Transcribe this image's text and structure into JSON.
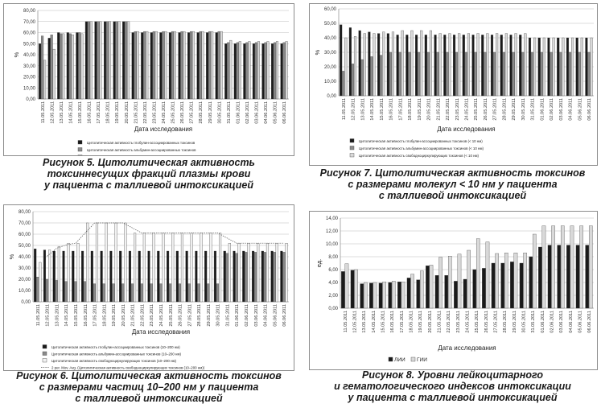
{
  "figures": [
    {
      "id": "fig5",
      "caption": [
        "Рисунок 5. Цитолитическая активность",
        "токсиннесущих фракций плазмы крови",
        "у пациента с таллиевой интоксикацией"
      ],
      "chart_data": {
        "type": "bar",
        "categories": [
          "11.05.2011",
          "12.05.2011",
          "13.05.2011",
          "14.05.2011",
          "15.05.2011",
          "16.05.2011",
          "17.05.2011",
          "18.05.2011",
          "19.05.2011",
          "20.05.2011",
          "21.05.2011",
          "22.05.2011",
          "23.05.2011",
          "24.05.2011",
          "25.05.2011",
          "26.05.2011",
          "27.05.2011",
          "28.05.2011",
          "29.05.2011",
          "30.05.2011",
          "31.05.2011",
          "01.06.2011",
          "02.06.2011",
          "03.06.2011",
          "04.06.2011",
          "05.06.2011",
          "06.06.2011"
        ],
        "series": [
          {
            "name": "Цитолитическая активность глобулин-ассоциированных токсинов",
            "color": "#1a1a1a",
            "values": [
              50,
              55,
              60,
              60,
              60,
              70,
              70,
              70,
              70,
              70,
              60,
              60,
              60,
              60,
              60,
              60,
              60,
              60,
              60,
              60,
              50,
              50,
              50,
              50,
              50,
              50,
              50
            ]
          },
          {
            "name": "Цитолитическая активность альбумин-ассоциированных токсинов",
            "color": "#8a8a8a",
            "values": [
              57,
              58,
              59,
              59,
              60,
              70,
              70,
              70,
              70,
              70,
              61,
              61,
              61,
              61,
              61,
              61,
              61,
              61,
              61,
              61,
              51,
              51,
              51,
              51,
              51,
              51,
              51
            ]
          },
          {
            "name": "Цитолитическая активность свободноциркулирующих токсинов",
            "color": "#d9d9d9",
            "values": [
              35,
              45,
              59,
              58,
              59,
              70,
              70,
              70,
              70,
              70,
              61,
              61,
              61,
              61,
              61,
              61,
              61,
              61,
              61,
              61,
              53,
              52,
              52,
              52,
              52,
              52,
              52
            ]
          }
        ],
        "ylim": [
          0,
          80
        ],
        "ytick_labels": [
          "0,00",
          "10,00",
          "20,00",
          "30,00",
          "40,00",
          "50,00",
          "60,00",
          "70,00",
          "80,00"
        ],
        "ylabel": "%",
        "xlabel": "Дата исследования",
        "grid": true,
        "legend": "bottom"
      }
    },
    {
      "id": "fig7",
      "caption": [
        "Рисунок 7. Цитолитическая активность токсинов",
        "с размерами молекул < 10 нм у пациента",
        "с таллиевой интоксикацией"
      ],
      "chart_data": {
        "type": "bar",
        "categories": [
          "11.05.2011",
          "12.05.2011",
          "13.05.2011",
          "14.05.2011",
          "15.05.2011",
          "16.05.2011",
          "17.05.2011",
          "18.05.2011",
          "19.05.2011",
          "20.05.2011",
          "21.05.2011",
          "22.05.2011",
          "23.05.2011",
          "24.05.2011",
          "25.05.2011",
          "26.05.2011",
          "27.05.2011",
          "28.05.2011",
          "29.05.2011",
          "30.05.2011",
          "31.05.2011",
          "01.06.2011",
          "02.06.2011",
          "03.06.2011",
          "04.06.2011",
          "05.06.2011",
          "06.06.2011"
        ],
        "series": [
          {
            "name": "Цитолитическая активность глобулин-ассоциированных токсинов (< 10 нм)",
            "color": "#1a1a1a",
            "values": [
              49,
              47,
              45,
              44,
              43,
              43,
              42,
              42,
              42,
              42,
              42,
              42,
              42,
              42,
              42,
              42,
              42,
              42,
              42,
              42,
              40,
              40,
              40,
              40,
              40,
              40,
              40
            ]
          },
          {
            "name": "Цитолитическая активность альбумин-ассоциированных токсинов (< 10 нм)",
            "color": "#8a8a8a",
            "values": [
              17,
              22,
              25,
              27,
              28,
              30,
              30,
              30,
              30,
              30,
              30,
              30,
              30,
              30,
              30,
              30,
              30,
              30,
              30,
              30,
              30,
              30,
              30,
              30,
              30,
              30,
              30
            ]
          },
          {
            "name": "Цитолитическая активность свободноциркулирующих токсинов (< 10 нм)",
            "color": "#d9d9d9",
            "values": [
              40,
              41,
              43,
              43,
              44,
              44,
              45,
              45,
              45,
              45,
              43,
              43,
              43,
              43,
              43,
              43,
              43,
              43,
              43,
              43,
              40,
              40,
              40,
              40,
              40,
              40,
              40
            ]
          }
        ],
        "ylim": [
          0,
          60
        ],
        "ytick_labels": [
          "0,00",
          "10,00",
          "20,00",
          "30,00",
          "40,00",
          "50,00",
          "60,00"
        ],
        "ylabel": "%",
        "xlabel": "Дата исследования",
        "grid": true,
        "legend": "bottom"
      }
    },
    {
      "id": "fig6",
      "caption": [
        "Рисунок 6. Цитолитическая активность токсинов",
        "с размерами частиц 10–200 нм у пациента",
        "с таллиевой интоксикацией"
      ],
      "chart_data": {
        "type": "bar",
        "categories": [
          "11.05.2011",
          "12.05.2011",
          "13.05.2011",
          "14.05.2011",
          "15.05.2011",
          "16.05.2011",
          "17.05.2011",
          "18.05.2011",
          "19.05.2011",
          "20.05.2011",
          "21.05.2011",
          "22.05.2011",
          "23.05.2011",
          "24.05.2011",
          "25.05.2011",
          "26.05.2011",
          "27.05.2011",
          "28.05.2011",
          "29.05.2011",
          "30.05.2011",
          "31.05.2011",
          "01.06.2011",
          "02.06.2011",
          "03.06.2011",
          "04.06.2011",
          "05.06.2011",
          "06.06.2011"
        ],
        "series": [
          {
            "name": "Цитолитическая активность глобулин-ассоциированных токсинов (10–200 нм)",
            "color": "#1a1a1a",
            "values": [
              47,
              46,
              45,
              45,
              45,
              45,
              45,
              45,
              45,
              45,
              45,
              45,
              45,
              45,
              45,
              45,
              45,
              45,
              45,
              45,
              45,
              45,
              45,
              45,
              45,
              45,
              45
            ]
          },
          {
            "name": "Цитолитическая активность альбумин-ассоциированных токсинов (10–200 нм)",
            "color": "#8a8a8a",
            "values": [
              22,
              20,
              19,
              18,
              18,
              18,
              16,
              16,
              16,
              16,
              16,
              16,
              16,
              16,
              16,
              16,
              16,
              16,
              16,
              16,
              43,
              43,
              44,
              44,
              44,
              44,
              44
            ]
          },
          {
            "name": "Цитолитическая активность свободноциркулирующих токсинов (10–200 нм)",
            "color": "#f2f2f2",
            "values": [
              35,
              46,
              49,
              52,
              52,
              70,
              70,
              70,
              70,
              70,
              61,
              61,
              61,
              61,
              61,
              61,
              61,
              61,
              61,
              61,
              52,
              52,
              52,
              52,
              52,
              52,
              52
            ]
          }
        ],
        "trendline": {
          "name": "2 per. Mov. Avg. (Цитолитическая активность свободноциркулирующих токсинов (10–200 нм))",
          "color": "#555555"
        },
        "ylim": [
          0,
          80
        ],
        "ytick_labels": [
          "0,00",
          "10,00",
          "20,00",
          "30,00",
          "40,00",
          "50,00",
          "60,00",
          "70,00",
          "80,00"
        ],
        "ylabel": "%",
        "xlabel": "Дата исследования",
        "grid": true,
        "legend": "bottom"
      }
    },
    {
      "id": "fig8",
      "caption": [
        "Рисунок 8. Уровни лейкоцитарного",
        "и гематологического индексов интоксикации",
        "у пациента с таллиевой интоксикацией"
      ],
      "chart_data": {
        "type": "bar",
        "categories": [
          "11.05.2011",
          "12.05.2011",
          "13.05.2011",
          "14.05.2011",
          "15.05.2011",
          "16.05.2011",
          "17.05.2011",
          "18.05.2011",
          "19.05.2011",
          "20.05.2011",
          "21.05.2011",
          "22.05.2011",
          "23.05.2011",
          "24.05.2011",
          "25.05.2011",
          "26.05.2011",
          "27.05.2011",
          "28.05.2011",
          "29.05.2011",
          "30.05.2011",
          "31.05.2011",
          "01.06.2011",
          "02.06.2011",
          "03.06.2011",
          "04.06.2011",
          "05.06.2011",
          "06.06.2011"
        ],
        "series": [
          {
            "name": "ЛИИ",
            "color": "#1a1a1a",
            "values": [
              5.7,
              5.9,
              3.8,
              3.9,
              3.9,
              4.0,
              4.1,
              4.7,
              4.4,
              6.6,
              5.1,
              5.1,
              4.2,
              4.5,
              6.0,
              6.2,
              7.0,
              7.0,
              7.2,
              7.0,
              8.0,
              9.5,
              9.8,
              9.8,
              9.8,
              9.8,
              9.8
            ]
          },
          {
            "name": "ГИИ",
            "color": "#d9d9d9",
            "values": [
              6.9,
              6.0,
              4.0,
              4.0,
              4.1,
              4.2,
              4.1,
              5.3,
              5.8,
              6.7,
              7.9,
              8.1,
              8.4,
              9.0,
              10.8,
              10.3,
              8.5,
              8.6,
              8.6,
              8.6,
              11.5,
              12.8,
              12.8,
              12.8,
              12.8,
              12.8,
              12.8
            ]
          }
        ],
        "ylim": [
          0,
          14
        ],
        "ytick_labels": [
          "0,00",
          "2,00",
          "4,00",
          "6,00",
          "8,00",
          "10,00",
          "12,00",
          "14,00"
        ],
        "ylabel": "ед.",
        "xlabel": "Дата исследования",
        "grid": true,
        "legend": "bottom"
      }
    }
  ]
}
